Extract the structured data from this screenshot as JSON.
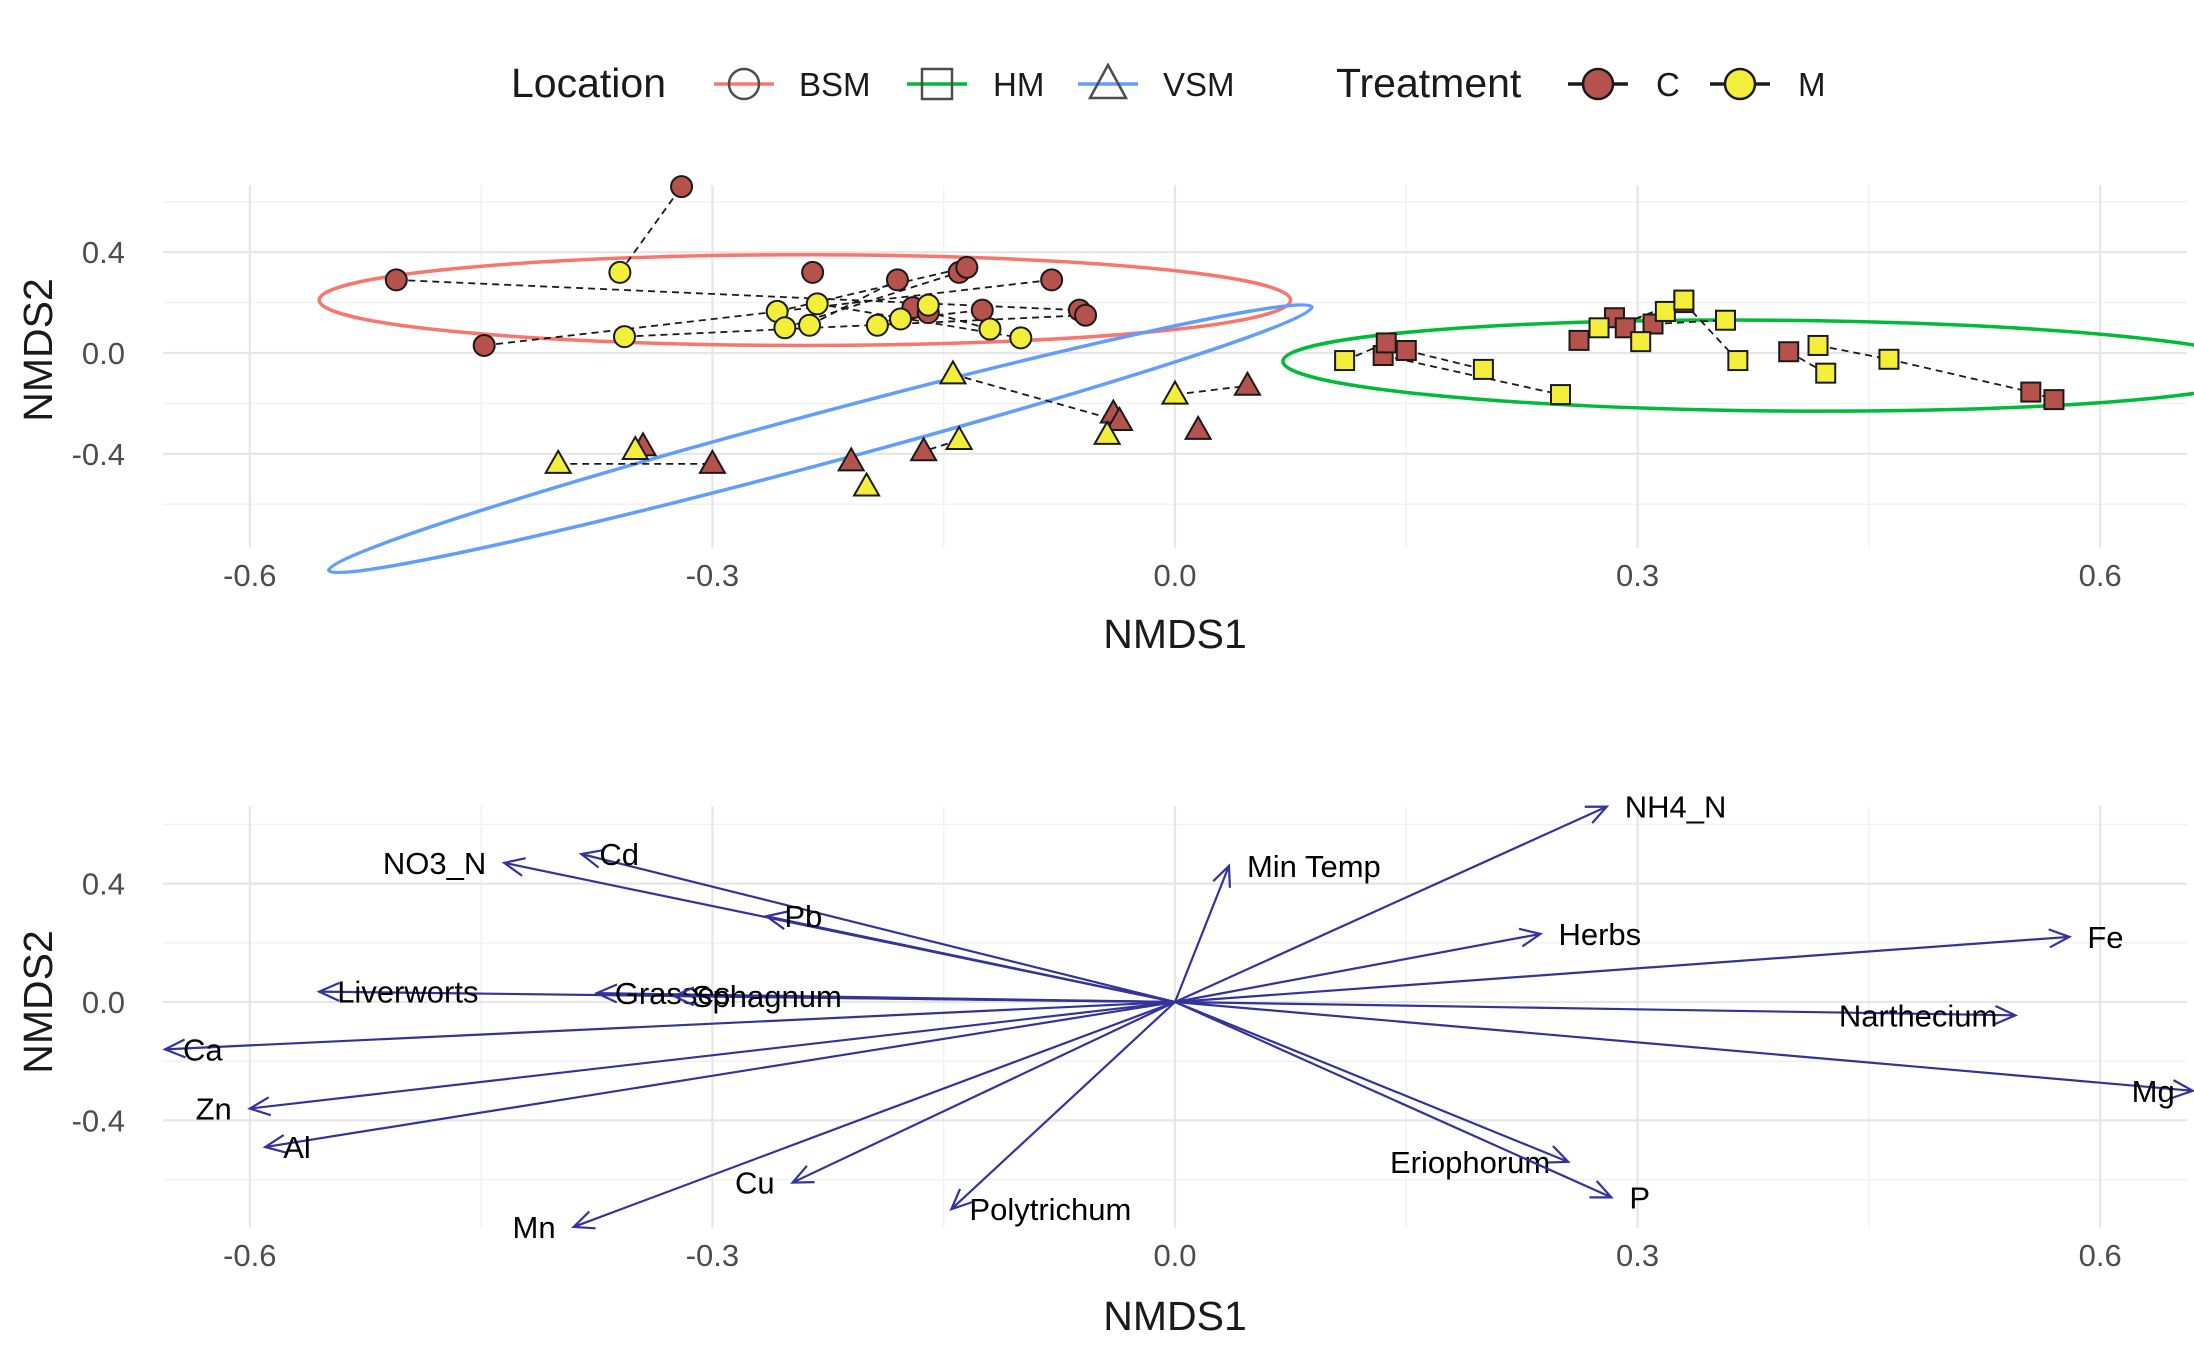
{
  "legend": {
    "location_title": "Location",
    "locations": [
      {
        "label": "BSM",
        "shape": "circle",
        "color": "#F8766D"
      },
      {
        "label": "HM",
        "shape": "square",
        "color": "#00BA38"
      },
      {
        "label": "VSM",
        "shape": "triangle",
        "color": "#619CFF"
      }
    ],
    "treatment_title": "Treatment",
    "treatments": [
      {
        "label": "C",
        "color": "#B5524B"
      },
      {
        "label": "M",
        "color": "#F2EE3A"
      }
    ]
  },
  "chart_data": [
    {
      "type": "scatter",
      "title": "",
      "xlabel": "NMDS1",
      "ylabel": "NMDS2",
      "xlim": [
        -0.66,
        0.66
      ],
      "ylim": [
        -0.77,
        0.67
      ],
      "x_ticks": [
        "-0.6",
        "-0.3",
        "0.0",
        "0.3",
        "0.6"
      ],
      "y_ticks": [
        "0.4",
        "0.0",
        "-0.4"
      ],
      "x_tick_values": [
        -0.6,
        -0.3,
        0.0,
        0.3,
        0.6
      ],
      "y_tick_values": [
        0.4,
        0.0,
        -0.4
      ],
      "grid": true,
      "ellipses": [
        {
          "location": "BSM",
          "cx": -0.24,
          "cy": 0.21,
          "rx": 0.315,
          "ry": 0.18,
          "angle_deg": 0
        },
        {
          "location": "HM",
          "cx": 0.39,
          "cy": -0.05,
          "rx": 0.32,
          "ry": 0.18,
          "angle_deg": -0.5
        },
        {
          "location": "VSM",
          "cx": -0.23,
          "cy": -0.34,
          "rx": 0.33,
          "ry": 0.1,
          "angle_deg": 15
        }
      ],
      "series": [
        {
          "location": "BSM",
          "treatment": "C",
          "points": [
            [
              -0.505,
              0.29
            ],
            [
              -0.448,
              0.03
            ],
            [
              -0.32,
              0.66
            ],
            [
              -0.235,
              0.32
            ],
            [
              -0.18,
              0.29
            ],
            [
              -0.14,
              0.32
            ],
            [
              -0.135,
              0.34
            ],
            [
              -0.17,
              0.18
            ],
            [
              -0.125,
              0.17
            ],
            [
              -0.08,
              0.29
            ],
            [
              -0.062,
              0.17
            ],
            [
              -0.058,
              0.15
            ],
            [
              -0.16,
              0.16
            ]
          ]
        },
        {
          "location": "BSM",
          "treatment": "M",
          "points": [
            [
              -0.36,
              0.32
            ],
            [
              -0.357,
              0.065
            ],
            [
              -0.258,
              0.165
            ],
            [
              -0.253,
              0.1
            ],
            [
              -0.237,
              0.11
            ],
            [
              -0.232,
              0.195
            ],
            [
              -0.193,
              0.11
            ],
            [
              -0.178,
              0.135
            ],
            [
              -0.16,
              0.19
            ],
            [
              -0.12,
              0.095
            ],
            [
              -0.1,
              0.06
            ]
          ]
        },
        {
          "location": "VSM",
          "treatment": "C",
          "points": [
            [
              -0.345,
              -0.37
            ],
            [
              -0.3,
              -0.44
            ],
            [
              -0.21,
              -0.43
            ],
            [
              -0.163,
              -0.39
            ],
            [
              -0.04,
              -0.24
            ],
            [
              -0.036,
              -0.27
            ],
            [
              0.015,
              -0.305
            ],
            [
              0.047,
              -0.13
            ]
          ]
        },
        {
          "location": "VSM",
          "treatment": "M",
          "points": [
            [
              -0.4,
              -0.44
            ],
            [
              -0.35,
              -0.385
            ],
            [
              -0.2,
              -0.53
            ],
            [
              -0.14,
              -0.345
            ],
            [
              -0.144,
              -0.085
            ],
            [
              -0.044,
              -0.325
            ],
            [
              0.0,
              -0.165
            ]
          ]
        },
        {
          "location": "HM",
          "treatment": "C",
          "points": [
            [
              0.135,
              -0.01
            ],
            [
              0.137,
              0.04
            ],
            [
              0.15,
              0.01
            ],
            [
              0.262,
              0.05
            ],
            [
              0.285,
              0.14
            ],
            [
              0.292,
              0.1
            ],
            [
              0.31,
              0.115
            ],
            [
              0.33,
              0.2
            ],
            [
              0.398,
              0.005
            ],
            [
              0.555,
              -0.155
            ],
            [
              0.57,
              -0.185
            ]
          ]
        },
        {
          "location": "HM",
          "treatment": "M",
          "points": [
            [
              0.11,
              -0.03
            ],
            [
              0.2,
              -0.065
            ],
            [
              0.25,
              -0.165
            ],
            [
              0.275,
              0.1
            ],
            [
              0.302,
              0.045
            ],
            [
              0.318,
              0.165
            ],
            [
              0.33,
              0.21
            ],
            [
              0.357,
              0.13
            ],
            [
              0.365,
              -0.03
            ],
            [
              0.417,
              0.03
            ],
            [
              0.422,
              -0.08
            ],
            [
              0.463,
              -0.025
            ]
          ]
        }
      ],
      "connectors": [
        [
          [
            -0.505,
            0.29
          ],
          [
            -0.062,
            0.17
          ]
        ],
        [
          [
            -0.448,
            0.03
          ],
          [
            -0.08,
            0.29
          ]
        ],
        [
          [
            -0.357,
            0.065
          ],
          [
            -0.058,
            0.15
          ]
        ],
        [
          [
            -0.36,
            0.32
          ],
          [
            -0.32,
            0.66
          ]
        ],
        [
          [
            -0.232,
            0.195
          ],
          [
            -0.1,
            0.06
          ]
        ],
        [
          [
            -0.258,
            0.165
          ],
          [
            -0.135,
            0.34
          ]
        ],
        [
          [
            -0.253,
            0.1
          ],
          [
            -0.14,
            0.32
          ]
        ],
        [
          [
            -0.237,
            0.11
          ],
          [
            -0.18,
            0.29
          ]
        ],
        [
          [
            -0.193,
            0.11
          ],
          [
            -0.16,
            0.19
          ]
        ],
        [
          [
            -0.178,
            0.135
          ],
          [
            -0.125,
            0.17
          ]
        ],
        [
          [
            -0.12,
            0.095
          ],
          [
            -0.17,
            0.18
          ]
        ],
        [
          [
            -0.4,
            -0.44
          ],
          [
            -0.3,
            -0.44
          ]
        ],
        [
          [
            -0.35,
            -0.385
          ],
          [
            -0.345,
            -0.37
          ]
        ],
        [
          [
            -0.144,
            -0.085
          ],
          [
            -0.036,
            -0.27
          ]
        ],
        [
          [
            -0.14,
            -0.345
          ],
          [
            -0.163,
            -0.39
          ]
        ],
        [
          [
            0.0,
            -0.165
          ],
          [
            0.047,
            -0.13
          ]
        ],
        [
          [
            -0.044,
            -0.325
          ],
          [
            -0.04,
            -0.24
          ]
        ],
        [
          [
            0.11,
            -0.03
          ],
          [
            0.137,
            0.04
          ]
        ],
        [
          [
            0.135,
            -0.01
          ],
          [
            0.25,
            -0.165
          ]
        ],
        [
          [
            0.15,
            0.01
          ],
          [
            0.2,
            -0.065
          ]
        ],
        [
          [
            0.262,
            0.05
          ],
          [
            0.33,
            0.21
          ]
        ],
        [
          [
            0.275,
            0.1
          ],
          [
            0.318,
            0.165
          ]
        ],
        [
          [
            0.285,
            0.14
          ],
          [
            0.302,
            0.045
          ]
        ],
        [
          [
            0.31,
            0.115
          ],
          [
            0.357,
            0.13
          ]
        ],
        [
          [
            0.33,
            0.2
          ],
          [
            0.365,
            -0.03
          ]
        ],
        [
          [
            0.398,
            0.005
          ],
          [
            0.422,
            -0.08
          ]
        ],
        [
          [
            0.417,
            0.03
          ],
          [
            0.463,
            -0.025
          ]
        ],
        [
          [
            0.463,
            -0.025
          ],
          [
            0.555,
            -0.155
          ]
        ],
        [
          [
            0.555,
            -0.155
          ],
          [
            0.57,
            -0.185
          ]
        ]
      ]
    },
    {
      "type": "biplot",
      "title": "",
      "xlabel": "NMDS1",
      "ylabel": "NMDS2",
      "xlim": [
        -0.66,
        0.66
      ],
      "ylim": [
        -0.77,
        0.67
      ],
      "x_ticks": [
        "-0.6",
        "-0.3",
        "0.0",
        "0.3",
        "0.6"
      ],
      "y_ticks": [
        "0.4",
        "0.0",
        "-0.4"
      ],
      "x_tick_values": [
        -0.6,
        -0.3,
        0.0,
        0.3,
        0.6
      ],
      "y_tick_values": [
        0.4,
        0.0,
        -0.4
      ],
      "grid": true,
      "arrow_color": "#33339A",
      "vectors": [
        {
          "label": "Cd",
          "x": -0.385,
          "y": 0.5,
          "label_anchor": "start"
        },
        {
          "label": "NO3_N",
          "x": -0.435,
          "y": 0.47,
          "label_anchor": "end"
        },
        {
          "label": "Pb",
          "x": -0.265,
          "y": 0.29,
          "label_anchor": "start"
        },
        {
          "label": "Liverworts",
          "x": -0.555,
          "y": 0.035,
          "label_anchor": "start"
        },
        {
          "label": "Grasses",
          "x": -0.375,
          "y": 0.03,
          "label_anchor": "start"
        },
        {
          "label": "Sphagnum",
          "x": -0.325,
          "y": 0.02,
          "label_anchor": "start"
        },
        {
          "label": "Ca",
          "x": -0.655,
          "y": -0.16,
          "label_anchor": "start"
        },
        {
          "label": "Zn",
          "x": -0.6,
          "y": -0.36,
          "label_anchor": "end"
        },
        {
          "label": "Al",
          "x": -0.59,
          "y": -0.49,
          "label_anchor": "start"
        },
        {
          "label": "Mn",
          "x": -0.39,
          "y": -0.76,
          "label_anchor": "end"
        },
        {
          "label": "Cu",
          "x": -0.248,
          "y": -0.61,
          "label_anchor": "end"
        },
        {
          "label": "Polytrichum",
          "x": -0.145,
          "y": -0.7,
          "label_anchor": "start"
        },
        {
          "label": "Min Temp",
          "x": 0.035,
          "y": 0.46,
          "label_anchor": "start"
        },
        {
          "label": "NH4_N",
          "x": 0.28,
          "y": 0.66,
          "label_anchor": "start"
        },
        {
          "label": "Herbs",
          "x": 0.237,
          "y": 0.23,
          "label_anchor": "start"
        },
        {
          "label": "Fe",
          "x": 0.58,
          "y": 0.22,
          "label_anchor": "start"
        },
        {
          "label": "Narthecium",
          "x": 0.545,
          "y": -0.045,
          "label_anchor": "end"
        },
        {
          "label": "Mg",
          "x": 0.66,
          "y": -0.3,
          "label_anchor": "end"
        },
        {
          "label": "Eriophorum",
          "x": 0.255,
          "y": -0.54,
          "label_anchor": "end"
        },
        {
          "label": "P",
          "x": 0.283,
          "y": -0.66,
          "label_anchor": "start"
        }
      ]
    }
  ]
}
